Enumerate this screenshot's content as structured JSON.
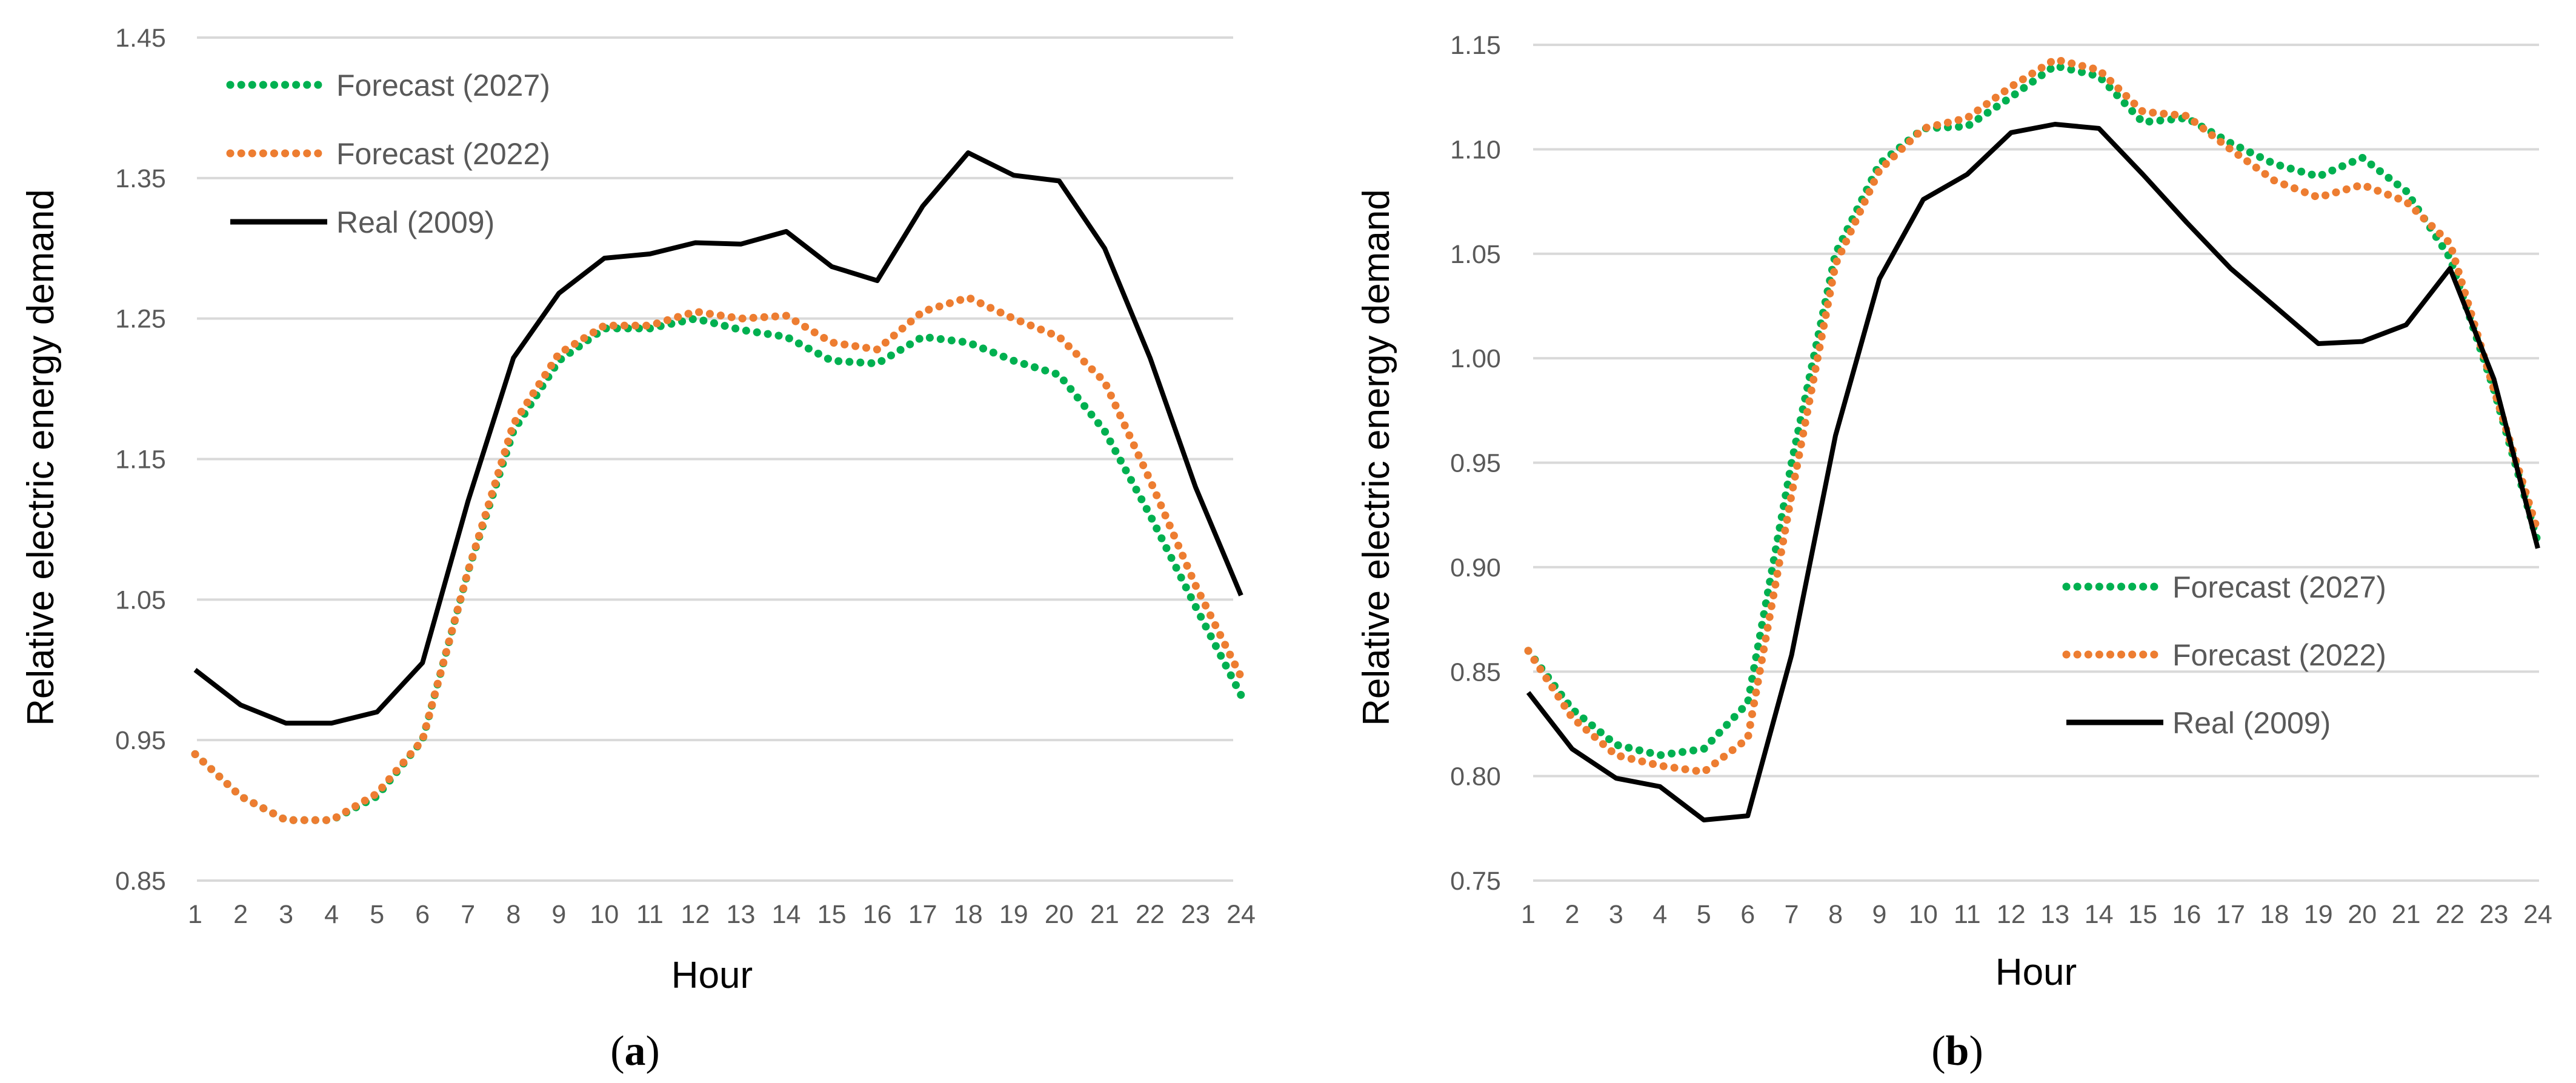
{
  "figure": {
    "panels": [
      "(a)",
      "(b)"
    ],
    "colors": {
      "forecast_2027": "#00B050",
      "forecast_2022": "#ED7D31",
      "real_2009": "#000000",
      "grid": "#D9D9D9",
      "tick_text": "#595959"
    }
  },
  "chart_data": [
    {
      "type": "line",
      "panel_letter": "a",
      "xlabel": "Hour",
      "ylabel": "Relative electric energy demand",
      "ylim": [
        0.85,
        1.45
      ],
      "y_ticks": [
        "0.85",
        "0.95",
        "1.05",
        "1.15",
        "1.25",
        "1.35",
        "1.45"
      ],
      "grid": true,
      "legend_position": "top-left",
      "x": [
        "1",
        "2",
        "3",
        "4",
        "5",
        "6",
        "7",
        "8",
        "9",
        "10",
        "11",
        "12",
        "13",
        "14",
        "15",
        "16",
        "17",
        "18",
        "19",
        "20",
        "21",
        "22",
        "23",
        "24"
      ],
      "series": [
        {
          "name": "Forecast (2027)",
          "style": "dotted",
          "color": "#00B050",
          "values": [
            0.94,
            0.91,
            0.893,
            0.893,
            0.91,
            0.95,
            1.07,
            1.17,
            1.22,
            1.243,
            1.243,
            1.25,
            1.242,
            1.237,
            1.22,
            1.218,
            1.237,
            1.233,
            1.22,
            1.21,
            1.17,
            1.11,
            1.045,
            0.982
          ]
        },
        {
          "name": "Forecast (2022)",
          "style": "dotted",
          "color": "#ED7D31",
          "values": [
            0.94,
            0.91,
            0.893,
            0.893,
            0.912,
            0.95,
            1.07,
            1.175,
            1.225,
            1.245,
            1.245,
            1.255,
            1.25,
            1.252,
            1.233,
            1.228,
            1.255,
            1.265,
            1.25,
            1.237,
            1.205,
            1.135,
            1.06,
            0.995
          ]
        },
        {
          "name": "Real (2009)",
          "style": "solid",
          "color": "#000000",
          "values": [
            1.0,
            0.975,
            0.962,
            0.962,
            0.97,
            1.005,
            1.12,
            1.222,
            1.268,
            1.293,
            1.296,
            1.304,
            1.303,
            1.312,
            1.287,
            1.277,
            1.33,
            1.368,
            1.352,
            1.348,
            1.3,
            1.222,
            1.13,
            1.053
          ]
        }
      ]
    },
    {
      "type": "line",
      "panel_letter": "b",
      "xlabel": "Hour",
      "ylabel": "Relative electric energy demand",
      "ylim": [
        0.75,
        1.15
      ],
      "y_ticks": [
        "0.75",
        "0.80",
        "0.85",
        "0.90",
        "0.95",
        "1.00",
        "1.05",
        "1.10",
        "1.15"
      ],
      "grid": true,
      "legend_position": "bottom-right",
      "x": [
        "1",
        "2",
        "3",
        "4",
        "5",
        "6",
        "7",
        "8",
        "9",
        "10",
        "11",
        "12",
        "13",
        "14",
        "15",
        "16",
        "17",
        "18",
        "19",
        "20",
        "21",
        "22",
        "23",
        "24"
      ],
      "series": [
        {
          "name": "Forecast (2027)",
          "style": "dotted",
          "color": "#00B050",
          "values": [
            0.86,
            0.832,
            0.815,
            0.81,
            0.813,
            0.835,
            0.95,
            1.05,
            1.093,
            1.11,
            1.111,
            1.125,
            1.14,
            1.135,
            1.113,
            1.115,
            1.103,
            1.093,
            1.087,
            1.096,
            1.08,
            1.048,
            0.985,
            0.912
          ]
        },
        {
          "name": "Forecast (2022)",
          "style": "dotted",
          "color": "#ED7D31",
          "values": [
            0.86,
            0.828,
            0.81,
            0.805,
            0.802,
            0.818,
            0.935,
            1.045,
            1.09,
            1.11,
            1.115,
            1.13,
            1.143,
            1.138,
            1.118,
            1.116,
            1.1,
            1.085,
            1.077,
            1.083,
            1.075,
            1.055,
            0.985,
            0.917
          ]
        },
        {
          "name": "Real (2009)",
          "style": "solid",
          "color": "#000000",
          "values": [
            0.84,
            0.813,
            0.799,
            0.795,
            0.779,
            0.781,
            0.858,
            0.963,
            1.038,
            1.076,
            1.088,
            1.108,
            1.112,
            1.11,
            1.088,
            1.065,
            1.043,
            1.025,
            1.007,
            1.008,
            1.016,
            1.043,
            0.99,
            0.909
          ]
        }
      ]
    }
  ]
}
